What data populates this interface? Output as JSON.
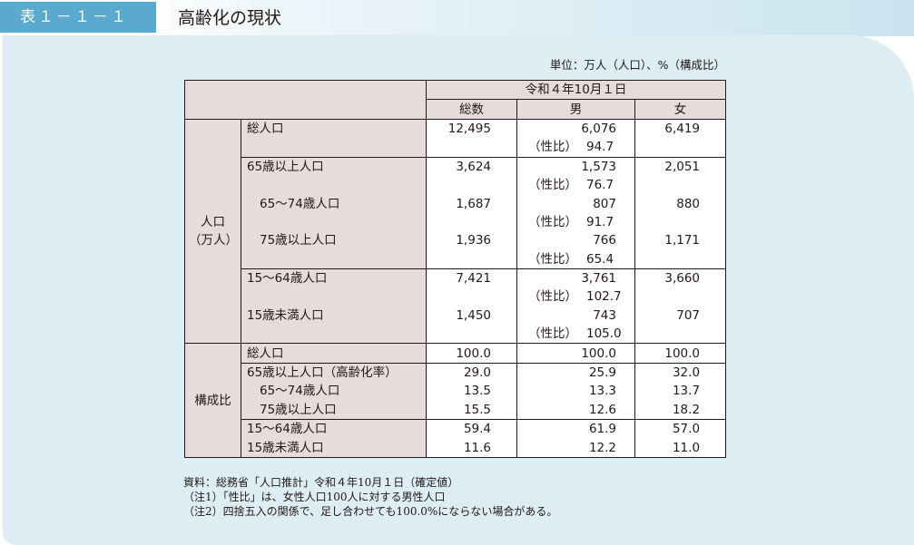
{
  "header": {
    "badge": "表１－１－１",
    "title": "高齢化の現状"
  },
  "unit_note": "単位：万人（人口）、%（構成比）",
  "table": {
    "date_header": "令和４年10月１日",
    "col_headers": [
      "総数",
      "男",
      "女"
    ],
    "group1_label_line1": "人口",
    "group1_label_line2": "（万人）",
    "group2_label": "構成比",
    "sex_ratio_label": "（性比）",
    "rows": [
      {
        "label": "総人口",
        "total": "12,495",
        "male": "6,076",
        "female": "6,419",
        "ratio": "94.7"
      },
      {
        "label": "65歳以上人口",
        "total": "3,624",
        "male": "1,573",
        "female": "2,051",
        "ratio": "76.7"
      },
      {
        "label": "65～74歳人口",
        "total": "1,687",
        "male": "807",
        "female": "880",
        "ratio": "91.7"
      },
      {
        "label": "75歳以上人口",
        "total": "1,936",
        "male": "766",
        "female": "1,171",
        "ratio": "65.4"
      },
      {
        "label": "15～64歳人口",
        "total": "7,421",
        "male": "3,761",
        "female": "3,660",
        "ratio": "102.7"
      },
      {
        "label": "15歳未満人口",
        "total": "1,450",
        "male": "743",
        "female": "707",
        "ratio": "105.0"
      }
    ],
    "comp_rows": [
      {
        "label": "総人口",
        "total": "100.0",
        "male": "100.0",
        "female": "100.0"
      },
      {
        "label": "65歳以上人口（高齢化率）",
        "total": "29.0",
        "male": "25.9",
        "female": "32.0"
      },
      {
        "label": "65～74歳人口",
        "total": "13.5",
        "male": "13.3",
        "female": "13.7"
      },
      {
        "label": "75歳以上人口",
        "total": "15.5",
        "male": "12.6",
        "female": "18.2"
      },
      {
        "label": "15～64歳人口",
        "total": "59.4",
        "male": "61.9",
        "female": "57.0"
      },
      {
        "label": "15歳未満人口",
        "total": "11.6",
        "male": "12.2",
        "female": "11.0"
      }
    ]
  },
  "notes": [
    "資料：総務省「人口推計」令和４年10月１日（確定値）",
    "（注1）「性比」は、女性人口100人に対する男性人口",
    "（注2）四捨五入の関係で、足し合わせても100.0%にならない場合がある。"
  ]
}
